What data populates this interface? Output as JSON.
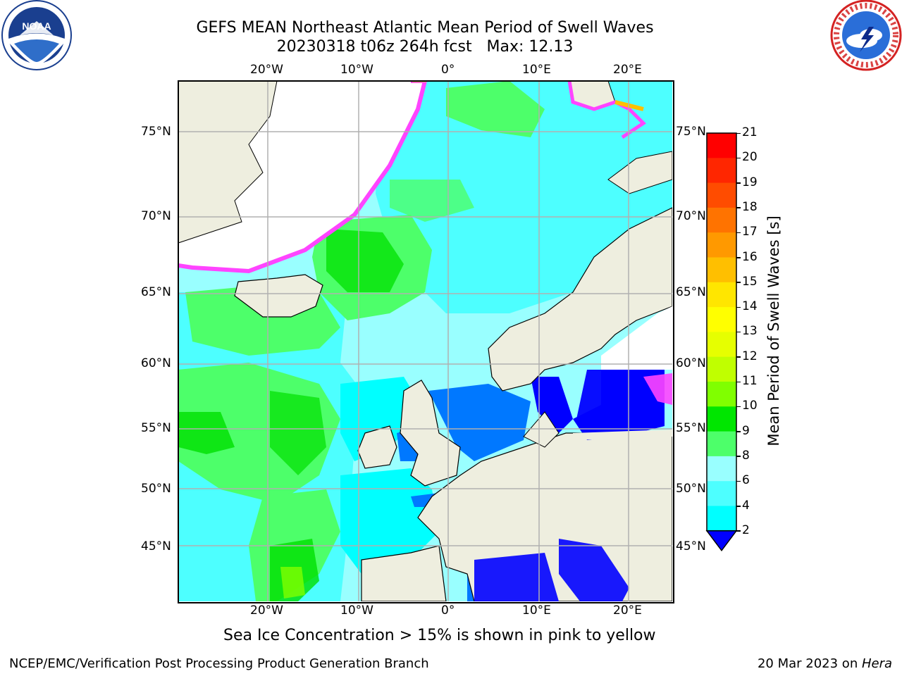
{
  "header": {
    "title_line1": "GEFS MEAN Northeast Atlantic Mean Period of Swell Waves",
    "title_line2": "20230318 t06z 264h fcst   Max: 12.13"
  },
  "logos": {
    "left": {
      "text": "NOAA",
      "ring_text": "NATIONAL OCEANIC AND ATMOSPHERIC ADMINISTRATION · U.S. DEPARTMENT OF COMMERCE",
      "color": "#1a3f8f"
    },
    "right": {
      "ring_text": "NATIONAL WEATHER SERVICE",
      "color": "#d42222"
    }
  },
  "map": {
    "lon_top_labels": [
      "20°W",
      "10°W",
      "0°",
      "10°E",
      "20°E"
    ],
    "lon_bottom_labels": [
      "20°W",
      "10°W",
      "0°",
      "10°E",
      "20°E"
    ],
    "lat_left_labels": [
      "75°N",
      "70°N",
      "65°N",
      "60°N",
      "55°N",
      "50°N",
      "45°N"
    ],
    "lat_right_labels": [
      "75°N",
      "70°N",
      "65°N",
      "60°N",
      "55°N",
      "50°N",
      "45°N"
    ],
    "colors": {
      "land": "#eeeedf",
      "ocean_cyan": "#00ffff",
      "ocean_lightcyan": "#99ffff",
      "ocean_aqua": "#4dffff",
      "green_light": "#4dff6a",
      "green": "#00e000",
      "green_yellow": "#80ff00",
      "blue": "#0078ff",
      "dark_blue": "#0000ff",
      "ice_pink": "#ff44ff",
      "ice_yellow": "#ffff00",
      "grid": "#b0b0b0"
    }
  },
  "colorbar": {
    "label": "Mean Period of Swell Waves [s]",
    "ticks": [
      "21",
      "20",
      "19",
      "18",
      "17",
      "16",
      "15",
      "14",
      "13",
      "12",
      "11",
      "10",
      "9",
      "8",
      "6",
      "4",
      "2"
    ],
    "colors_top_to_bottom": [
      "#ff0000",
      "#ff2600",
      "#ff4c00",
      "#ff7300",
      "#ff9900",
      "#ffbf00",
      "#ffe600",
      "#ffff00",
      "#e6ff00",
      "#c0ff00",
      "#80ff00",
      "#00e600",
      "#4dff6a",
      "#99ffff",
      "#4dffff",
      "#00ffff",
      "#0080ff",
      "#0000ff"
    ]
  },
  "caption": "Sea Ice Concentration > 15% is shown in pink to yellow",
  "footer": {
    "left": "NCEP/EMC/Verification Post Processing Product Generation Branch",
    "right_prefix": "20 Mar 2023 on ",
    "right_italic": "Hera"
  }
}
